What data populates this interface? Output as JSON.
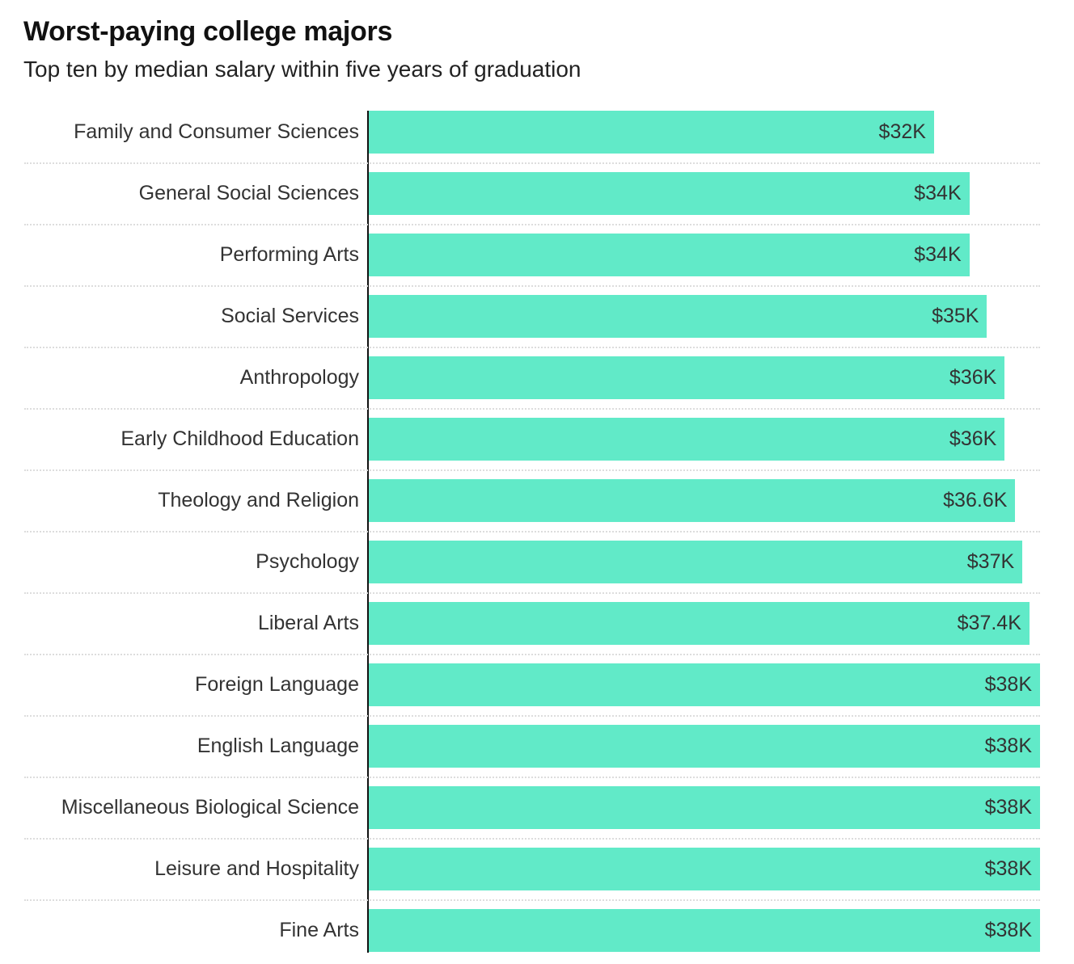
{
  "chart_data": {
    "type": "bar",
    "orientation": "horizontal",
    "title": "Worst-paying college majors",
    "subtitle": "Top ten by median salary within five years of graduation",
    "xlabel": "",
    "ylabel": "",
    "xlim": [
      0,
      38
    ],
    "unit": "thousand USD",
    "bar_color": "#61EAC8",
    "grid": false,
    "categories": [
      "Family and Consumer Sciences",
      "General Social Sciences",
      "Performing Arts",
      "Social Services",
      "Anthropology",
      "Early Childhood Education",
      "Theology and Religion",
      "Psychology",
      "Liberal Arts",
      "Foreign Language",
      "English Language",
      "Miscellaneous Biological Science",
      "Leisure and Hospitality",
      "Fine Arts"
    ],
    "values": [
      32,
      34,
      34,
      35,
      36,
      36,
      36.6,
      37,
      37.4,
      38,
      38,
      38,
      38,
      38
    ],
    "labels": [
      "$32K",
      "$34K",
      "$34K",
      "$35K",
      "$36K",
      "$36K",
      "$36.6K",
      "$37K",
      "$37.4K",
      "$38K",
      "$38K",
      "$38K",
      "$38K",
      "$38K"
    ]
  }
}
